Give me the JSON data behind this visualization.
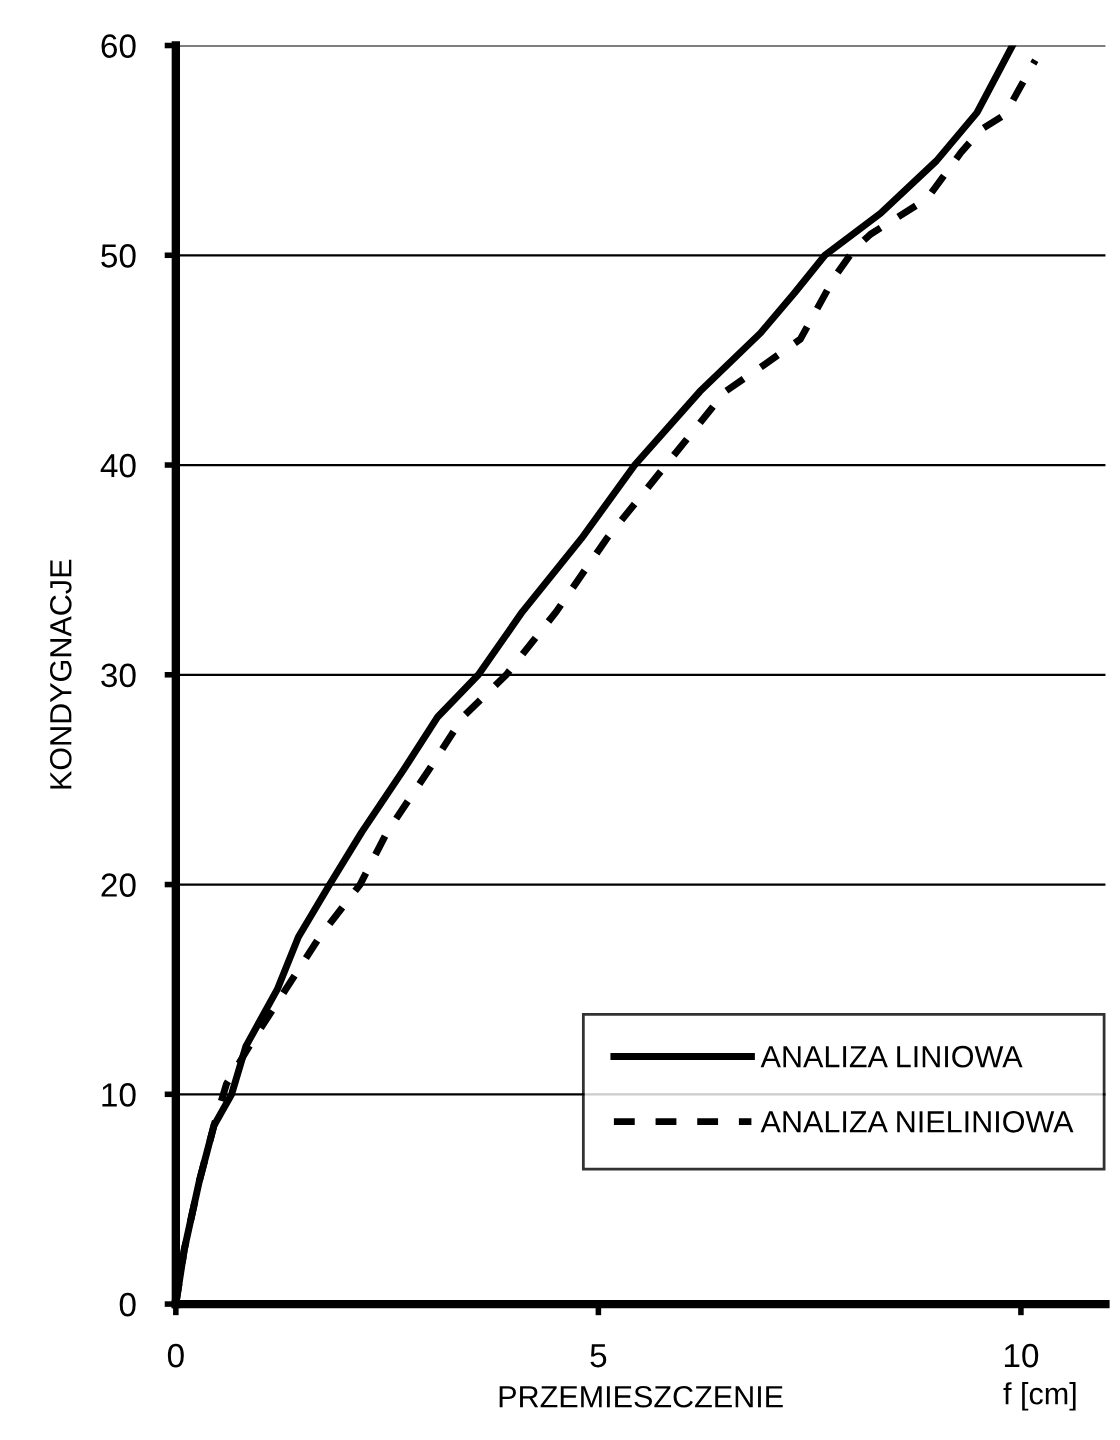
{
  "chart_data": {
    "type": "line",
    "xlabel": "PRZEMIESZCZENIE",
    "ylabel": "KONDYGNACJE",
    "annotations": [
      "f [cm]"
    ],
    "xlim": [
      0,
      11
    ],
    "xticks": [
      0,
      5,
      10
    ],
    "ylim": [
      0,
      60
    ],
    "yticks": [
      0,
      10,
      20,
      30,
      40,
      50,
      60
    ],
    "grid": "y",
    "legend": "bottom right",
    "marker": "none",
    "series": [
      {
        "name": "ANALIZA LINIOWA",
        "color": "#000000",
        "line_style": "solid",
        "x": [
          0,
          0.1,
          0.28,
          0.45,
          0.66,
          0.83,
          1.2,
          1.45,
          1.82,
          2.2,
          2.7,
          3.1,
          3.58,
          4.1,
          4.8,
          5.43,
          6.2,
          6.92,
          7.32,
          7.68,
          8.34,
          9.0,
          9.48,
          9.69,
          9.9
        ],
        "values": [
          0,
          2.6,
          5.9,
          8.5,
          10,
          12.3,
          15,
          17.5,
          20,
          22.5,
          25.5,
          28,
          30,
          33,
          36.5,
          40,
          43.5,
          46.3,
          48.2,
          50,
          52,
          54.5,
          56.8,
          58.4,
          60
        ]
      },
      {
        "name": "ANALIZA NIELINIOWA",
        "color": "#000000",
        "line_style": "dashed",
        "x": [
          0,
          0.1,
          0.28,
          0.45,
          0.6,
          0.9,
          1.3,
          1.7,
          2.18,
          2.5,
          3.0,
          3.4,
          3.91,
          4.5,
          5.1,
          5.8,
          6.5,
          6.97,
          7.39,
          7.8,
          8.03,
          8.22,
          8.89,
          9.29,
          9.53,
          9.81,
          10.17
        ],
        "values": [
          0,
          2.6,
          5.9,
          8.5,
          10.5,
          12.5,
          15,
          17.5,
          20,
          22.5,
          25.5,
          28,
          30,
          33,
          36.5,
          40,
          43.5,
          44.8,
          46,
          49,
          50.3,
          51,
          52.7,
          54.9,
          56,
          56.7,
          59.3
        ]
      }
    ]
  }
}
